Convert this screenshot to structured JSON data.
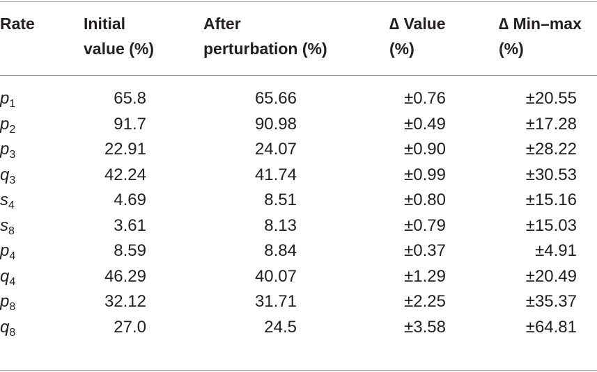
{
  "table": {
    "headers": {
      "rate": [
        "Rate"
      ],
      "initial": [
        "Initial",
        "value (%)"
      ],
      "after": [
        "After",
        "perturbation (%)"
      ],
      "delta_value": [
        "∆ Value",
        "(%)"
      ],
      "delta_minmax": [
        "∆ Min–max",
        "(%)"
      ]
    },
    "rows": [
      {
        "var": "p",
        "sub": "1",
        "initial": "65.8",
        "after": "65.66",
        "delta_value": "±0.76",
        "delta_minmax": "±20.55"
      },
      {
        "var": "p",
        "sub": "2",
        "initial": "91.7",
        "after": "90.98",
        "delta_value": "±0.49",
        "delta_minmax": "±17.28"
      },
      {
        "var": "p",
        "sub": "3",
        "initial": "22.91",
        "after": "24.07",
        "delta_value": "±0.90",
        "delta_minmax": "±28.22"
      },
      {
        "var": "q",
        "sub": "3",
        "initial": "42.24",
        "after": "41.74",
        "delta_value": "±0.99",
        "delta_minmax": "±30.53"
      },
      {
        "var": "s",
        "sub": "4",
        "initial": "4.69",
        "after": "8.51",
        "delta_value": "±0.80",
        "delta_minmax": "±15.16"
      },
      {
        "var": "s",
        "sub": "8",
        "initial": "3.61",
        "after": "8.13",
        "delta_value": "±0.79",
        "delta_minmax": "±15.03"
      },
      {
        "var": "p",
        "sub": "4",
        "initial": "8.59",
        "after": "8.84",
        "delta_value": "±0.37",
        "delta_minmax": "±4.91"
      },
      {
        "var": "q",
        "sub": "4",
        "initial": "46.29",
        "after": "40.07",
        "delta_value": "±1.29",
        "delta_minmax": "±20.49"
      },
      {
        "var": "p",
        "sub": "8",
        "initial": "32.12",
        "after": "31.71",
        "delta_value": "±2.25",
        "delta_minmax": "±35.37"
      },
      {
        "var": "q",
        "sub": "8",
        "initial": "27.0",
        "after": "24.5",
        "delta_value": "±3.58",
        "delta_minmax": "±64.81"
      }
    ]
  }
}
